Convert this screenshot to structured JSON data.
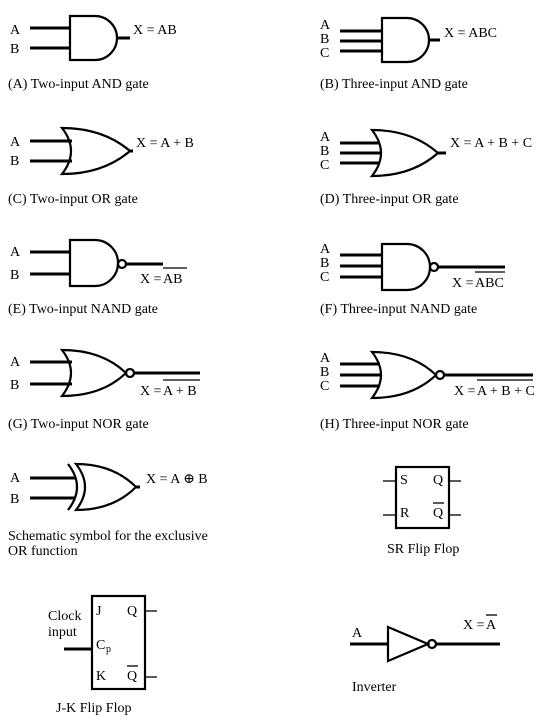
{
  "gates": [
    {
      "id": "A",
      "caption": "(A)  Two-input AND gate",
      "inputs": [
        "A",
        "B"
      ],
      "output": "X = AB"
    },
    {
      "id": "B",
      "caption": "(B)  Three-input AND gate",
      "inputs": [
        "A",
        "B",
        "C"
      ],
      "output": "X = ABC"
    },
    {
      "id": "C",
      "caption": "(C)  Two-input OR gate",
      "inputs": [
        "A",
        "B"
      ],
      "output": "X = A + B"
    },
    {
      "id": "D",
      "caption": "(D)  Three-input OR gate",
      "inputs": [
        "A",
        "B",
        "C"
      ],
      "output": "X = A + B + C"
    },
    {
      "id": "E",
      "caption": "(E)  Two-input NAND gate",
      "inputs": [
        "A",
        "B"
      ],
      "output_prefix": "X = ",
      "output_bar": "AB"
    },
    {
      "id": "F",
      "caption": "(F)  Three-input NAND gate",
      "inputs": [
        "A",
        "B",
        "C"
      ],
      "output_prefix": "X = ",
      "output_bar": "ABC"
    },
    {
      "id": "G",
      "caption": "(G)  Two-input NOR gate",
      "inputs": [
        "A",
        "B"
      ],
      "output_prefix": "X = ",
      "output_bar": "A + B"
    },
    {
      "id": "H",
      "caption": "(H)  Three-input NOR gate",
      "inputs": [
        "A",
        "B",
        "C"
      ],
      "output_prefix": "X = ",
      "output_bar": "A + B + C"
    }
  ],
  "xor": {
    "inputs": [
      "A",
      "B"
    ],
    "output": "X = A ⊕ B",
    "caption_line1": "Schematic symbol for the exclusive",
    "caption_line2": "OR function"
  },
  "sr_flip_flop": {
    "s": "S",
    "r": "R",
    "q": "Q",
    "qbar": "Q",
    "caption": "SR Flip Flop"
  },
  "jk_flip_flop": {
    "clock_line1": "Clock",
    "clock_line2": "input",
    "j": "J",
    "k": "K",
    "cp_main": "C",
    "cp_sub": "p",
    "q": "Q",
    "qbar": "Q",
    "caption": "J-K Flip Flop"
  },
  "inverter": {
    "input": "A",
    "output_prefix": "X = ",
    "output_bar": "A",
    "caption": "Inverter"
  }
}
